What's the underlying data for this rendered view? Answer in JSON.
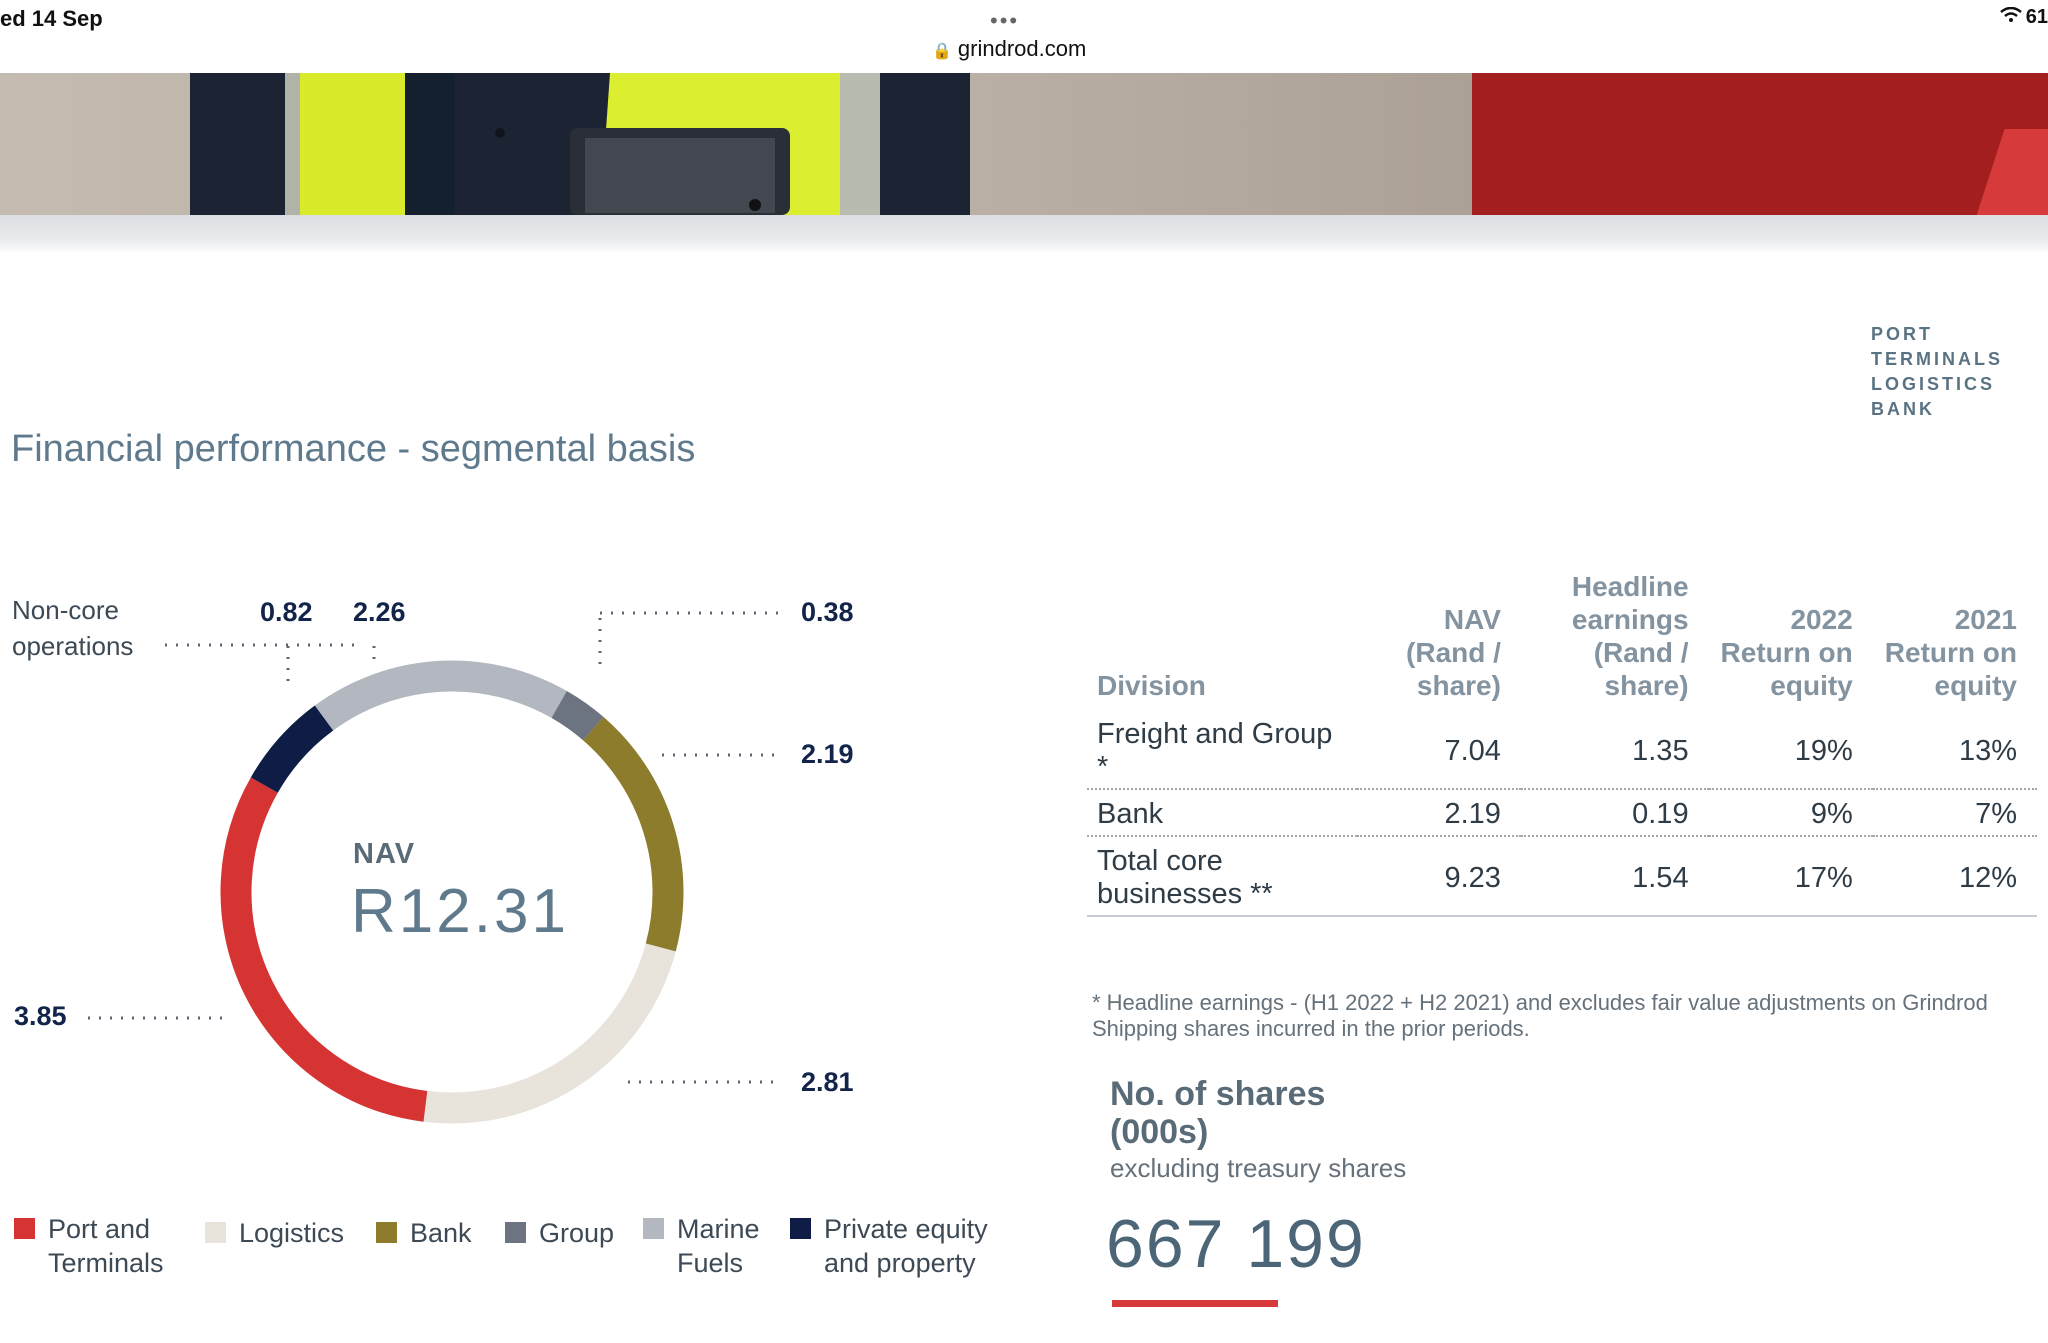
{
  "status_bar": {
    "date": "ed 14 Sep",
    "dots": "•••",
    "url": "grindrod.com",
    "battery": "61"
  },
  "brand_tagline": [
    "PORT",
    "TERMINALS",
    "LOGISTICS",
    "BANK"
  ],
  "page_title": "Financial performance - segmental basis",
  "donut": {
    "center_label": "NAV",
    "center_value": "R12.31",
    "noncore_label": "Non-core operations",
    "callouts": {
      "private_equity": "0.82",
      "marine_fuels": "2.26",
      "group": "0.38",
      "bank": "2.19",
      "logistics": "2.81",
      "port": "3.85"
    }
  },
  "chart_data": {
    "type": "pie",
    "title": "NAV",
    "total_label": "R12.31",
    "categories": [
      "Port and Terminals",
      "Logistics",
      "Bank",
      "Group",
      "Marine Fuels",
      "Private equity and property"
    ],
    "values": [
      3.85,
      2.81,
      2.19,
      0.38,
      2.26,
      0.82
    ],
    "colors": [
      "#d63333",
      "#e8e4db",
      "#8c7c2c",
      "#6b7480",
      "#b3b8c0",
      "#0f1d46"
    ]
  },
  "legend": [
    {
      "label": "Port and Terminals",
      "color": "#d63333"
    },
    {
      "label": "Logistics",
      "color": "#e8e4db"
    },
    {
      "label": "Bank",
      "color": "#8c7c2c"
    },
    {
      "label": "Group",
      "color": "#6b7480"
    },
    {
      "label": "Marine Fuels",
      "color": "#b3b8c0"
    },
    {
      "label": "Private equity and property",
      "color": "#0f1d46"
    }
  ],
  "table": {
    "headers": [
      "Division",
      "NAV (Rand / share)",
      "Headline earnings (Rand / share)",
      "2022 Return on equity",
      "2021 Return on equity"
    ],
    "rows": [
      {
        "division": "Freight and Group *",
        "nav": "7.04",
        "he": "1.35",
        "roe2022": "19%",
        "roe2021": "13%"
      },
      {
        "division": "Bank",
        "nav": "2.19",
        "he": "0.19",
        "roe2022": "9%",
        "roe2021": "7%"
      },
      {
        "division": "Total core businesses **",
        "nav": "9.23",
        "he": "1.54",
        "roe2022": "17%",
        "roe2021": "12%"
      }
    ]
  },
  "footnote": "* Headline earnings - (H1 2022 + H2 2021) and excludes fair value adjustments on Grindrod Shipping shares incurred in the prior periods.",
  "shares": {
    "title": "No. of shares (000s)",
    "subtitle": "excluding treasury shares",
    "value": "667 199"
  }
}
